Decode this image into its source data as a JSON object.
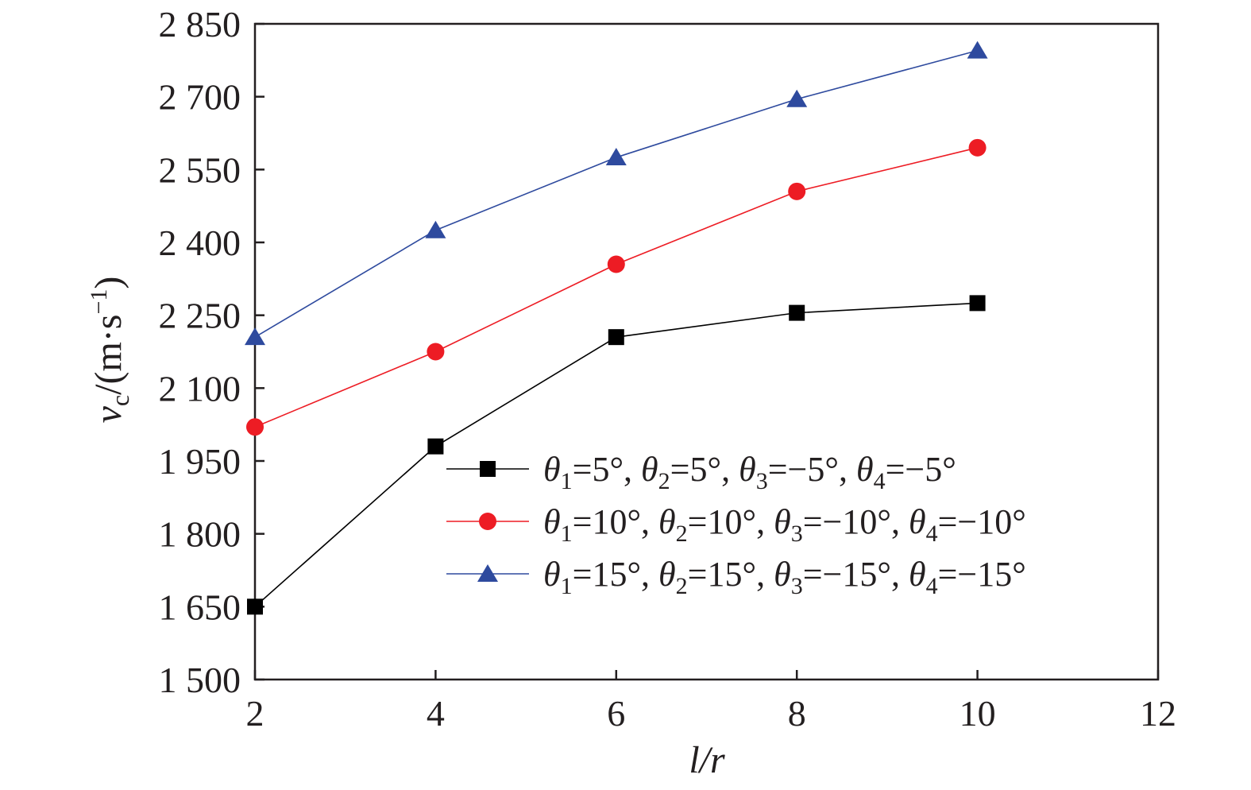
{
  "chart_data": {
    "type": "line",
    "title": "",
    "xlabel": "l/r",
    "ylabel": "vc/(m·s−1)",
    "xlim": [
      2,
      12
    ],
    "ylim": [
      1500,
      2850
    ],
    "x_ticks": [
      2,
      4,
      6,
      8,
      10,
      12
    ],
    "y_ticks": [
      1500,
      1650,
      1800,
      1950,
      2100,
      2250,
      2400,
      2550,
      2700,
      2850
    ],
    "x_tick_labels": [
      "2",
      "4",
      "6",
      "8",
      "10",
      "12"
    ],
    "y_tick_labels": [
      "1 500",
      "1 650",
      "1 800",
      "1 950",
      "2 100",
      "2 250",
      "2 400",
      "2 550",
      "2 700",
      "2 850"
    ],
    "grid": false,
    "legend_position": "right-middle",
    "x": [
      2,
      4,
      6,
      8,
      10
    ],
    "series": [
      {
        "name": "θ1=5°, θ2=5°, θ3=−5°, θ4=−5°",
        "marker": "square",
        "color": "#000000",
        "values": [
          1650,
          1980,
          2205,
          2255,
          2275
        ]
      },
      {
        "name": "θ1=10°, θ2=10°, θ3=−10°, θ4=−10°",
        "marker": "circle",
        "color": "#ed1c24",
        "values": [
          2020,
          2175,
          2355,
          2505,
          2595
        ]
      },
      {
        "name": "θ1=15°, θ2=15°, θ3=−15°, θ4=−15°",
        "marker": "triangle",
        "color": "#2e4a9e",
        "values": [
          2205,
          2425,
          2575,
          2695,
          2795
        ]
      }
    ]
  }
}
